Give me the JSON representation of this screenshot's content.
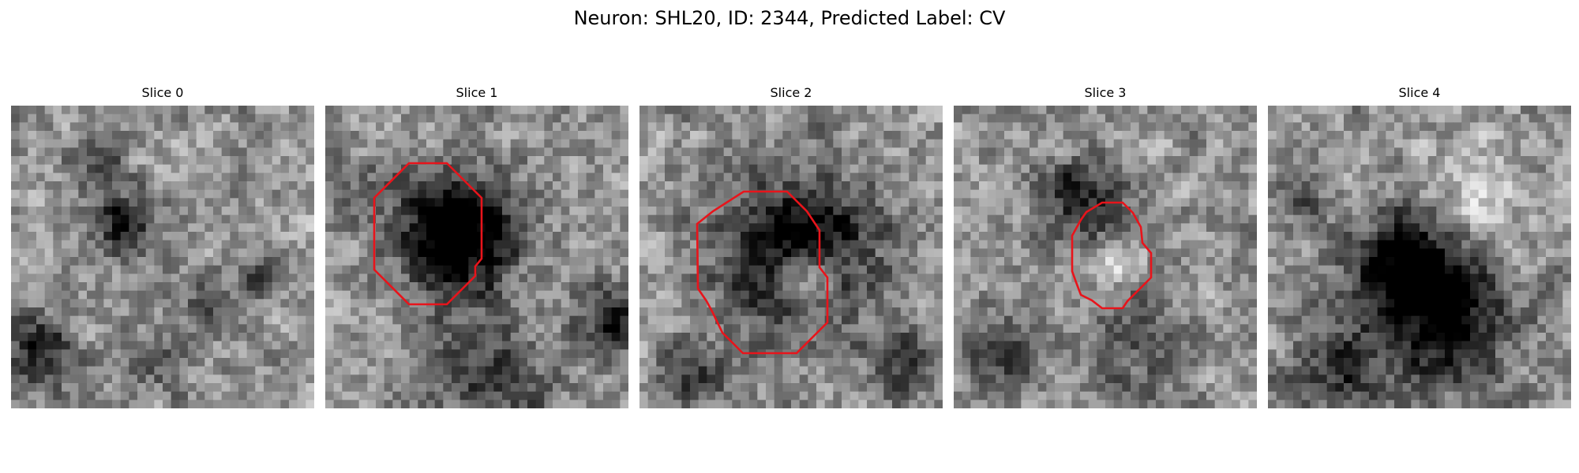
{
  "figure": {
    "title": "Neuron: SHL20, ID: 2344, Predicted Label: CV"
  },
  "panels": [
    {
      "title": "Slice 0",
      "seed": 11,
      "contrast": 1.0,
      "has_contour": false
    },
    {
      "title": "Slice 1",
      "seed": 23,
      "contrast": 1.0,
      "has_contour": true
    },
    {
      "title": "Slice 2",
      "seed": 37,
      "contrast": 1.0,
      "has_contour": true
    },
    {
      "title": "Slice 3",
      "seed": 53,
      "contrast": 1.0,
      "has_contour": true
    },
    {
      "title": "Slice 4",
      "seed": 71,
      "contrast": 1.0,
      "has_contour": false
    }
  ],
  "colors": {
    "contour": "#e8141b",
    "background": "#ffffff",
    "text": "#000000"
  },
  "image": {
    "colormap": "gray",
    "grid": 36
  }
}
